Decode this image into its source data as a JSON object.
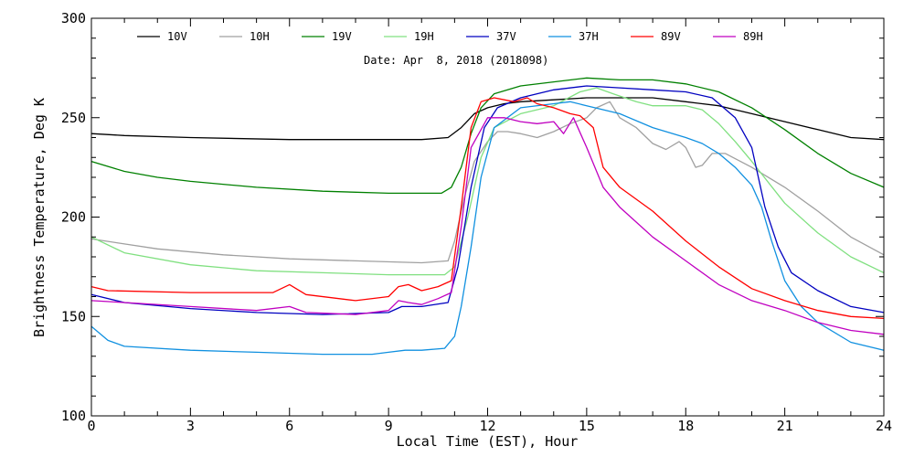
{
  "chart_data": {
    "type": "line",
    "date_label": "Date: Apr  8, 2018 (2018098)",
    "xlabel": "Local Time (EST), Hour",
    "ylabel": "Brightness Temperature, Deg K",
    "xlim": [
      0,
      24
    ],
    "ylim": [
      100,
      300
    ],
    "xticks": [
      0,
      3,
      6,
      9,
      12,
      15,
      18,
      21,
      24
    ],
    "yticks": [
      100,
      150,
      200,
      250,
      300
    ],
    "grid": false,
    "legend_position": "top",
    "series": [
      {
        "name": "10V",
        "color": "#000000",
        "points": [
          [
            0,
            242
          ],
          [
            1,
            241
          ],
          [
            3,
            240
          ],
          [
            6,
            239
          ],
          [
            8,
            239
          ],
          [
            9,
            239
          ],
          [
            10,
            239
          ],
          [
            10.8,
            240
          ],
          [
            11.2,
            245
          ],
          [
            11.6,
            252
          ],
          [
            12,
            255
          ],
          [
            12.5,
            257
          ],
          [
            13,
            258
          ],
          [
            14,
            259
          ],
          [
            15,
            260
          ],
          [
            16,
            260
          ],
          [
            17,
            260
          ],
          [
            18,
            258
          ],
          [
            19,
            256
          ],
          [
            20,
            252
          ],
          [
            21,
            248
          ],
          [
            22,
            244
          ],
          [
            23,
            240
          ],
          [
            24,
            239
          ]
        ]
      },
      {
        "name": "10H",
        "color": "#a0a0a0",
        "points": [
          [
            0,
            189
          ],
          [
            2,
            184
          ],
          [
            4,
            181
          ],
          [
            6,
            179
          ],
          [
            8,
            178
          ],
          [
            10,
            177
          ],
          [
            10.8,
            178
          ],
          [
            11,
            188
          ],
          [
            11.3,
            210
          ],
          [
            11.6,
            228
          ],
          [
            12,
            238
          ],
          [
            12.3,
            243
          ],
          [
            12.6,
            243
          ],
          [
            13,
            242
          ],
          [
            13.5,
            240
          ],
          [
            14,
            243
          ],
          [
            14.5,
            247
          ],
          [
            15,
            250
          ],
          [
            15.3,
            255
          ],
          [
            15.7,
            258
          ],
          [
            16,
            250
          ],
          [
            16.5,
            245
          ],
          [
            17,
            237
          ],
          [
            17.4,
            234
          ],
          [
            17.8,
            238
          ],
          [
            18,
            235
          ],
          [
            18.3,
            225
          ],
          [
            18.5,
            226
          ],
          [
            18.8,
            232
          ],
          [
            19.2,
            232
          ],
          [
            20,
            225
          ],
          [
            21,
            215
          ],
          [
            22,
            203
          ],
          [
            23,
            190
          ],
          [
            24,
            181
          ]
        ]
      },
      {
        "name": "19V",
        "color": "#008000",
        "points": [
          [
            0,
            228
          ],
          [
            1,
            223
          ],
          [
            2,
            220
          ],
          [
            3,
            218
          ],
          [
            5,
            215
          ],
          [
            7,
            213
          ],
          [
            9,
            212
          ],
          [
            10.6,
            212
          ],
          [
            10.9,
            215
          ],
          [
            11.2,
            225
          ],
          [
            11.5,
            242
          ],
          [
            11.8,
            255
          ],
          [
            12.2,
            262
          ],
          [
            13,
            266
          ],
          [
            14,
            268
          ],
          [
            15,
            270
          ],
          [
            16,
            269
          ],
          [
            17,
            269
          ],
          [
            18,
            267
          ],
          [
            19,
            263
          ],
          [
            20,
            255
          ],
          [
            21,
            244
          ],
          [
            22,
            232
          ],
          [
            23,
            222
          ],
          [
            24,
            215
          ]
        ]
      },
      {
        "name": "19H",
        "color": "#80e080",
        "points": [
          [
            0,
            190
          ],
          [
            1,
            182
          ],
          [
            3,
            176
          ],
          [
            5,
            173
          ],
          [
            7,
            172
          ],
          [
            9,
            171
          ],
          [
            10.7,
            171
          ],
          [
            11,
            175
          ],
          [
            11.4,
            200
          ],
          [
            11.8,
            230
          ],
          [
            12.2,
            245
          ],
          [
            13,
            252
          ],
          [
            14,
            256
          ],
          [
            14.8,
            263
          ],
          [
            15.3,
            265
          ],
          [
            15.8,
            262
          ],
          [
            16.5,
            258
          ],
          [
            17,
            256
          ],
          [
            18,
            256
          ],
          [
            18.5,
            254
          ],
          [
            19,
            247
          ],
          [
            19.5,
            238
          ],
          [
            20,
            228
          ],
          [
            21,
            207
          ],
          [
            22,
            192
          ],
          [
            23,
            180
          ],
          [
            24,
            172
          ]
        ]
      },
      {
        "name": "37V",
        "color": "#0000c0",
        "points": [
          [
            0,
            161
          ],
          [
            1,
            157
          ],
          [
            3,
            154
          ],
          [
            5,
            152
          ],
          [
            7,
            151
          ],
          [
            9,
            152
          ],
          [
            9.4,
            155
          ],
          [
            10,
            155
          ],
          [
            10.8,
            157
          ],
          [
            11.1,
            175
          ],
          [
            11.5,
            215
          ],
          [
            11.9,
            245
          ],
          [
            12.3,
            255
          ],
          [
            13,
            260
          ],
          [
            14,
            264
          ],
          [
            15,
            266
          ],
          [
            16,
            265
          ],
          [
            17,
            264
          ],
          [
            18,
            263
          ],
          [
            18.8,
            260
          ],
          [
            19.5,
            250
          ],
          [
            20,
            235
          ],
          [
            20.4,
            205
          ],
          [
            20.8,
            185
          ],
          [
            21.2,
            172
          ],
          [
            22,
            163
          ],
          [
            23,
            155
          ],
          [
            24,
            152
          ]
        ]
      },
      {
        "name": "37H",
        "color": "#1090e0",
        "points": [
          [
            0,
            145
          ],
          [
            0.5,
            138
          ],
          [
            1,
            135
          ],
          [
            3,
            133
          ],
          [
            5,
            132
          ],
          [
            7,
            131
          ],
          [
            8.5,
            131
          ],
          [
            9,
            132
          ],
          [
            9.5,
            133
          ],
          [
            10,
            133
          ],
          [
            10.7,
            134
          ],
          [
            11,
            140
          ],
          [
            11.2,
            155
          ],
          [
            11.5,
            185
          ],
          [
            11.8,
            220
          ],
          [
            12.2,
            245
          ],
          [
            13,
            255
          ],
          [
            14,
            257
          ],
          [
            14.5,
            258
          ],
          [
            15,
            256
          ],
          [
            16,
            252
          ],
          [
            17,
            245
          ],
          [
            18,
            240
          ],
          [
            18.5,
            237
          ],
          [
            19,
            232
          ],
          [
            19.5,
            225
          ],
          [
            20,
            216
          ],
          [
            20.3,
            205
          ],
          [
            20.6,
            188
          ],
          [
            21,
            168
          ],
          [
            21.5,
            155
          ],
          [
            22,
            147
          ],
          [
            23,
            137
          ],
          [
            24,
            133
          ]
        ]
      },
      {
        "name": "89V",
        "color": "#ff0000",
        "points": [
          [
            0,
            165
          ],
          [
            0.5,
            163
          ],
          [
            3,
            162
          ],
          [
            5.5,
            162
          ],
          [
            6,
            166
          ],
          [
            6.5,
            161
          ],
          [
            8,
            158
          ],
          [
            9,
            160
          ],
          [
            9.3,
            165
          ],
          [
            9.6,
            166
          ],
          [
            10,
            163
          ],
          [
            10.5,
            165
          ],
          [
            10.9,
            168
          ],
          [
            11.2,
            205
          ],
          [
            11.5,
            245
          ],
          [
            11.8,
            258
          ],
          [
            12.2,
            260
          ],
          [
            12.8,
            258
          ],
          [
            13.2,
            260
          ],
          [
            13.5,
            257
          ],
          [
            14,
            255
          ],
          [
            14.5,
            252
          ],
          [
            14.8,
            251
          ],
          [
            15.2,
            245
          ],
          [
            15.5,
            225
          ],
          [
            16,
            215
          ],
          [
            17,
            203
          ],
          [
            18,
            188
          ],
          [
            19,
            175
          ],
          [
            20,
            164
          ],
          [
            21,
            158
          ],
          [
            22,
            153
          ],
          [
            23,
            150
          ],
          [
            24,
            149
          ]
        ]
      },
      {
        "name": "89H",
        "color": "#c000c0",
        "points": [
          [
            0,
            158
          ],
          [
            1,
            157
          ],
          [
            3,
            155
          ],
          [
            5,
            153
          ],
          [
            6,
            155
          ],
          [
            6.5,
            152
          ],
          [
            8,
            151
          ],
          [
            9,
            153
          ],
          [
            9.3,
            158
          ],
          [
            9.6,
            157
          ],
          [
            10,
            156
          ],
          [
            10.5,
            159
          ],
          [
            10.9,
            162
          ],
          [
            11.2,
            195
          ],
          [
            11.5,
            235
          ],
          [
            12,
            250
          ],
          [
            12.5,
            250
          ],
          [
            13,
            248
          ],
          [
            13.5,
            247
          ],
          [
            14,
            248
          ],
          [
            14.3,
            242
          ],
          [
            14.6,
            250
          ],
          [
            15,
            235
          ],
          [
            15.5,
            215
          ],
          [
            16,
            205
          ],
          [
            17,
            190
          ],
          [
            18,
            178
          ],
          [
            19,
            166
          ],
          [
            20,
            158
          ],
          [
            21,
            153
          ],
          [
            22,
            147
          ],
          [
            23,
            143
          ],
          [
            24,
            141
          ]
        ]
      }
    ]
  }
}
